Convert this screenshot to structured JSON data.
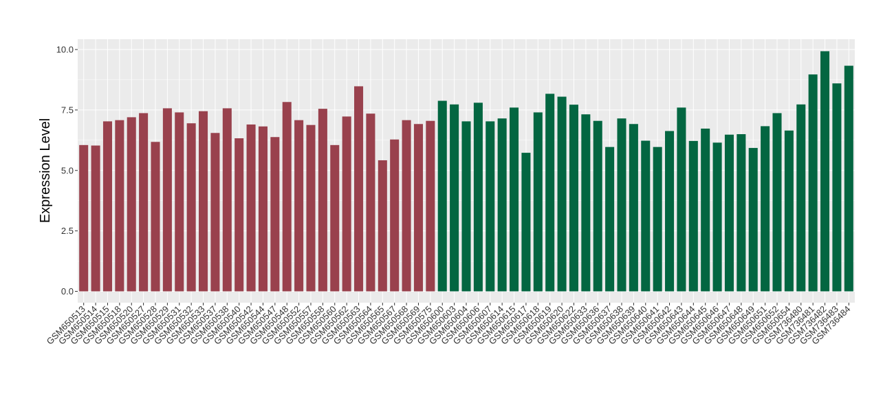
{
  "chart_data": {
    "type": "bar",
    "title": "",
    "xlabel": "",
    "ylabel": "Expression Level",
    "ylim": [
      0,
      10.5
    ],
    "yticks": [
      "0.0",
      "2.5",
      "5.0",
      "7.5",
      "10.0"
    ],
    "grid": true,
    "legend": "none",
    "categories": [
      "GSM650513",
      "GSM650514",
      "GSM650515",
      "GSM650518",
      "GSM650520",
      "GSM650527",
      "GSM650528",
      "GSM650529",
      "GSM650531",
      "GSM650532",
      "GSM650533",
      "GSM650537",
      "GSM650538",
      "GSM650540",
      "GSM650542",
      "GSM650544",
      "GSM650547",
      "GSM650548",
      "GSM650552",
      "GSM650557",
      "GSM650558",
      "GSM650560",
      "GSM650562",
      "GSM650563",
      "GSM650564",
      "GSM650565",
      "GSM650567",
      "GSM650568",
      "GSM650569",
      "GSM650575",
      "GSM650600",
      "GSM650603",
      "GSM650604",
      "GSM650606",
      "GSM650607",
      "GSM650614",
      "GSM650615",
      "GSM650617",
      "GSM650618",
      "GSM650619",
      "GSM650620",
      "GSM650622",
      "GSM650633",
      "GSM650636",
      "GSM650637",
      "GSM650638",
      "GSM650639",
      "GSM650640",
      "GSM650641",
      "GSM650642",
      "GSM650643",
      "GSM650644",
      "GSM650645",
      "GSM650646",
      "GSM650647",
      "GSM650648",
      "GSM650649",
      "GSM650651",
      "GSM650652",
      "GSM650654",
      "GSM736480",
      "GSM736481",
      "GSM736482",
      "GSM736483",
      "GSM736484"
    ],
    "values": [
      6.05,
      6.03,
      7.03,
      7.08,
      7.2,
      7.37,
      6.18,
      7.57,
      7.4,
      6.95,
      7.45,
      6.55,
      7.57,
      6.33,
      6.9,
      6.82,
      6.38,
      7.83,
      7.08,
      6.88,
      7.55,
      6.05,
      7.23,
      8.48,
      7.35,
      5.42,
      6.28,
      7.08,
      6.92,
      7.05,
      7.88,
      7.73,
      7.03,
      7.8,
      7.03,
      7.15,
      7.6,
      5.73,
      7.4,
      8.17,
      8.05,
      7.72,
      7.32,
      7.05,
      5.97,
      7.15,
      6.92,
      6.23,
      5.97,
      6.63,
      7.6,
      6.22,
      6.73,
      6.15,
      6.48,
      6.5,
      5.93,
      6.83,
      7.37,
      6.65,
      7.73,
      8.97,
      9.93,
      8.6,
      9.33
    ],
    "colors": [
      "#99414d",
      "#99414d",
      "#99414d",
      "#99414d",
      "#99414d",
      "#99414d",
      "#99414d",
      "#99414d",
      "#99414d",
      "#99414d",
      "#99414d",
      "#99414d",
      "#99414d",
      "#99414d",
      "#99414d",
      "#99414d",
      "#99414d",
      "#99414d",
      "#99414d",
      "#99414d",
      "#99414d",
      "#99414d",
      "#99414d",
      "#99414d",
      "#99414d",
      "#99414d",
      "#99414d",
      "#99414d",
      "#99414d",
      "#99414d",
      "#036641",
      "#036641",
      "#036641",
      "#036641",
      "#036641",
      "#036641",
      "#036641",
      "#036641",
      "#036641",
      "#036641",
      "#036641",
      "#036641",
      "#036641",
      "#036641",
      "#036641",
      "#036641",
      "#036641",
      "#036641",
      "#036641",
      "#036641",
      "#036641",
      "#036641",
      "#036641",
      "#036641",
      "#036641",
      "#036641",
      "#036641",
      "#036641",
      "#036641",
      "#036641",
      "#036641",
      "#036641",
      "#036641",
      "#036641",
      "#036641"
    ],
    "panel_background": "#ebebeb",
    "gridline_color": "#ffffff"
  }
}
